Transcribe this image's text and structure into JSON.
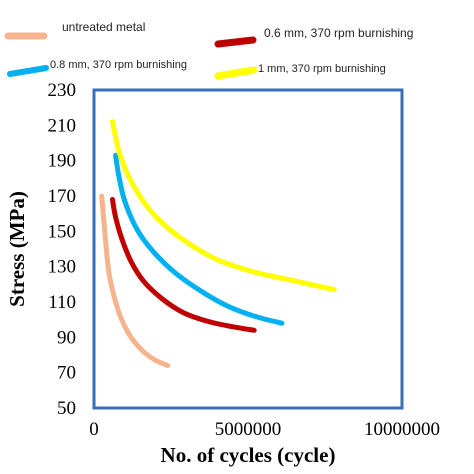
{
  "chart_data": {
    "type": "line",
    "xlabel": "No. of cycles (cycle)",
    "ylabel": "Stress (MPa)",
    "xlim": [
      0,
      10000000
    ],
    "ylim": [
      50,
      230
    ],
    "xticks": [
      "0",
      "5000000",
      "10000000"
    ],
    "yticks": [
      "50",
      "70",
      "90",
      "110",
      "130",
      "150",
      "170",
      "190",
      "210",
      "230"
    ],
    "grid": false,
    "legend_position": "top",
    "series": [
      {
        "name": "untreated metal",
        "color": "#f6b48e",
        "x": [
          250000,
          300000,
          400000,
          500000,
          700000,
          900000,
          1200000,
          1600000,
          2000000,
          2400000
        ],
        "y": [
          170,
          160,
          140,
          125,
          110,
          100,
          90,
          82,
          77,
          74
        ]
      },
      {
        "name": "0.6 mm, 370 rpm burnishing",
        "color": "#c00000",
        "x": [
          600000,
          700000,
          900000,
          1200000,
          1600000,
          2200000,
          2900000,
          3700000,
          4500000,
          5200000
        ],
        "y": [
          168,
          158,
          146,
          133,
          122,
          112,
          104,
          99,
          96,
          94
        ]
      },
      {
        "name": "0.8 mm, 370 rpm burnishing",
        "color": "#00b0f0",
        "x": [
          700000,
          800000,
          1000000,
          1400000,
          1900000,
          2600000,
          3400000,
          4300000,
          5200000,
          6100000
        ],
        "y": [
          193,
          182,
          167,
          151,
          139,
          127,
          117,
          108,
          102,
          98
        ]
      },
      {
        "name": "1 mm, 370 rpm burnishing",
        "color": "#ffff00",
        "x": [
          600000,
          800000,
          1100000,
          1600000,
          2200000,
          3000000,
          4000000,
          5200000,
          6500000,
          7800000
        ],
        "y": [
          212,
          196,
          182,
          167,
          155,
          144,
          134,
          127,
          122,
          117
        ]
      }
    ]
  }
}
